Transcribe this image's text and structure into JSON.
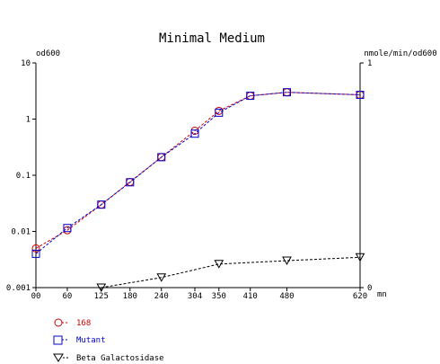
{
  "chart_data": {
    "type": "line",
    "title": "Minimal Medium",
    "left_axis_label": "od600",
    "right_axis_label": "nmole/min/od600",
    "x_unit_label": "mn",
    "x_ticks": [
      "00",
      "60",
      "125",
      "180",
      "240",
      "304",
      "350",
      "410",
      "480",
      "620"
    ],
    "x_tick_values": [
      0,
      60,
      125,
      180,
      240,
      304,
      350,
      410,
      480,
      620
    ],
    "xlim": [
      0,
      620
    ],
    "left_scale": "log",
    "left_ticks": [
      "10",
      "1",
      "0.1",
      "0.01",
      "0.001"
    ],
    "left_tick_values": [
      10,
      1,
      0.1,
      0.01,
      0.001
    ],
    "ylim_left": [
      0.001,
      10
    ],
    "right_ticks": [
      "1",
      "0"
    ],
    "right_tick_values": [
      1,
      0
    ],
    "ylim_right": [
      0,
      1
    ],
    "series": [
      {
        "name": "168",
        "axis": "left",
        "marker": "circle",
        "color": "#cc0000",
        "x": [
          0,
          60,
          125,
          180,
          240,
          304,
          350,
          410,
          480,
          620
        ],
        "y": [
          0.005,
          0.0105,
          0.03,
          0.076,
          0.21,
          0.62,
          1.4,
          2.6,
          3.0,
          2.7
        ]
      },
      {
        "name": "Mutant",
        "axis": "left",
        "marker": "square",
        "color": "#0000cc",
        "x": [
          0,
          60,
          125,
          180,
          240,
          304,
          350,
          410,
          480,
          620
        ],
        "y": [
          0.004,
          0.0115,
          0.03,
          0.075,
          0.21,
          0.55,
          1.3,
          2.6,
          3.0,
          2.7
        ]
      },
      {
        "name": "Beta Galactosidase",
        "axis": "right",
        "marker": "triangle-down",
        "color": "#000000",
        "x": [
          125,
          240,
          350,
          480,
          620
        ],
        "y": [
          0.0,
          0.045,
          0.105,
          0.12,
          0.135
        ]
      }
    ],
    "grid": false,
    "legend_position": "bottom-left"
  }
}
